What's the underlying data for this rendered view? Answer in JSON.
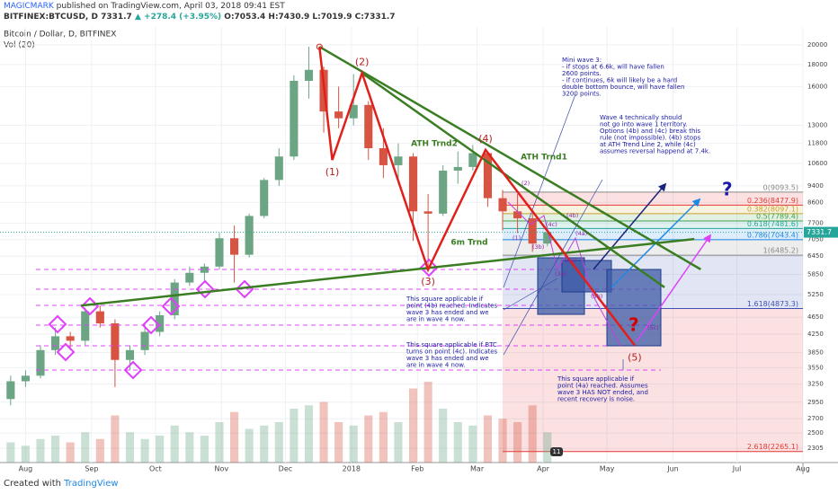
{
  "header": {
    "author": "MAGICMARK",
    "published": "published on TradingView.com, April 03, 2018 09:41 EST",
    "symbol": "BITFINEX:BTCUSD, D",
    "last": "7331.7",
    "change": "▲ +278.4 (+3.95%)",
    "ohlc": "O:7053.4 H:7430.9 L:7019.9 C:7331.7"
  },
  "footer": {
    "created": "Created with",
    "brand": "TradingView"
  },
  "chart_data": {
    "type": "candlestick",
    "title": "Bitcoin / Dollar, D, BITFINEX",
    "volume_label": "Vol (20)",
    "log_scale": true,
    "grid": true,
    "up_color": "#6ba583",
    "down_color": "#d75442",
    "x": [
      -7,
      0,
      7,
      14,
      21,
      28,
      35,
      42,
      49,
      56,
      63,
      70,
      77,
      84,
      91,
      98,
      105,
      112,
      119,
      126,
      133,
      140,
      147,
      154,
      161,
      168,
      175,
      182,
      189,
      196,
      203,
      210,
      217,
      224,
      231,
      238,
      245
    ],
    "open": [
      3000,
      3300,
      3400,
      3900,
      4200,
      4100,
      4800,
      4500,
      3700,
      3900,
      4300,
      4700,
      5600,
      5900,
      6100,
      7100,
      6500,
      8000,
      9700,
      11000,
      16500,
      17500,
      14000,
      13500,
      14500,
      11500,
      10500,
      11000,
      8200,
      8100,
      10200,
      10400,
      11200,
      8800,
      8200,
      7900,
      6900
    ],
    "high": [
      3400,
      3500,
      4000,
      4400,
      4300,
      4900,
      4950,
      4600,
      4000,
      4400,
      4800,
      5700,
      6100,
      6200,
      7300,
      7600,
      8100,
      9800,
      11500,
      17000,
      19800,
      17800,
      16000,
      17100,
      14800,
      12800,
      11800,
      11200,
      9000,
      10500,
      11300,
      11700,
      11300,
      9200,
      9000,
      8100,
      7430.9
    ],
    "low": [
      2900,
      3200,
      3350,
      3800,
      3900,
      4000,
      4400,
      3200,
      3500,
      3800,
      4200,
      4600,
      5500,
      5600,
      6000,
      5600,
      6400,
      7900,
      9400,
      10800,
      15000,
      12500,
      12800,
      13000,
      10800,
      9800,
      9600,
      7000,
      6000,
      8000,
      9500,
      10200,
      8400,
      7400,
      7300,
      6600,
      6800
    ],
    "close": [
      3300,
      3400,
      3900,
      4200,
      4100,
      4800,
      4500,
      3700,
      3900,
      4300,
      4700,
      5600,
      5900,
      6100,
      7100,
      6500,
      8000,
      9700,
      11000,
      16500,
      17500,
      14000,
      13500,
      14500,
      11500,
      10500,
      11000,
      8200,
      8100,
      10200,
      10400,
      11200,
      8800,
      8200,
      7900,
      6900,
      7331.7
    ],
    "volume": [
      30,
      25,
      35,
      40,
      30,
      45,
      35,
      70,
      45,
      35,
      40,
      55,
      45,
      40,
      60,
      75,
      50,
      55,
      60,
      80,
      85,
      90,
      60,
      55,
      70,
      75,
      60,
      110,
      120,
      80,
      60,
      55,
      70,
      65,
      60,
      85,
      45
    ],
    "last_price": {
      "value": 7331.7,
      "label": "7331.7"
    },
    "xlim": [
      -12,
      365
    ],
    "xticks": [
      {
        "value": 0,
        "label": "Aug"
      },
      {
        "value": 31,
        "label": "Sep"
      },
      {
        "value": 61,
        "label": "Oct"
      },
      {
        "value": 92,
        "label": "Nov"
      },
      {
        "value": 122,
        "label": "Dec"
      },
      {
        "value": 153,
        "label": "2018"
      },
      {
        "value": 184,
        "label": "Feb"
      },
      {
        "value": 212,
        "label": "Mar"
      },
      {
        "value": 243,
        "label": "Apr"
      },
      {
        "value": 273,
        "label": "May"
      },
      {
        "value": 304,
        "label": "Jun"
      },
      {
        "value": 334,
        "label": "Jul"
      },
      {
        "value": 365,
        "label": "Aug"
      }
    ],
    "ylim": [
      2135,
      22020
    ],
    "yticks": [
      20000,
      18000,
      16000,
      13000,
      11800,
      10600,
      9400,
      8600,
      7700,
      7050,
      6450,
      5850,
      5250,
      4650,
      4250,
      3850,
      3550,
      3250,
      2950,
      2700,
      2500,
      2305
    ],
    "fib_start": 224,
    "fib": [
      {
        "label": "0(9093.5)",
        "price": 9093.5,
        "color": "#888888"
      },
      {
        "label": "0.236(8477.9)",
        "price": 8477.9,
        "color": "#e53935"
      },
      {
        "label": "0.382(8097.1)",
        "price": 8097.1,
        "color": "#c9a227"
      },
      {
        "label": "0.5(7789.4)",
        "price": 7789.4,
        "color": "#43a047"
      },
      {
        "label": "0.618(7481.6)",
        "price": 7481.6,
        "color": "#26a69a"
      },
      {
        "label": "0.786(7043.4)",
        "price": 7043.4,
        "color": "#1e88e5"
      },
      {
        "label": "1(6485.2)",
        "price": 6485.2,
        "color": "#888888"
      },
      {
        "label": "1.618(4873.3)",
        "price": 4873.3,
        "color": "#3f51b5"
      },
      {
        "label": "2.618(2265.1)",
        "price": 2265.1,
        "color": "#e53935"
      }
    ],
    "waves": {
      "x": [
        138,
        144,
        158,
        189,
        216,
        286
      ],
      "y": [
        19800,
        10800,
        17200,
        6000,
        11400,
        4000
      ],
      "labels": [
        null,
        "(1)",
        "(2)",
        "(3)",
        "(4)",
        "(5)"
      ],
      "color": "#e0201b"
    },
    "trendlines": [
      {
        "name": "ATH Trnd1",
        "x": [
          138,
          317
        ],
        "y": [
          19800,
          6010
        ],
        "color": "#3a7d22"
      },
      {
        "name": "ATH Trnd2",
        "x": [
          158,
          300
        ],
        "y": [
          17200,
          5460
        ],
        "color": "#3a7d22"
      },
      {
        "name": "6m Trnd",
        "x": [
          26,
          314
        ],
        "y": [
          4950,
          7070
        ],
        "color": "#3a7d22"
      }
    ],
    "mini_labels": [
      "(2)",
      "(1)",
      "(3b)",
      "(4b)",
      "(4c)",
      "(4a)",
      "(3a)",
      "(5b)",
      "(5a)",
      "(5c)"
    ],
    "notes": [
      {
        "lines": [
          "Mini wave 3:",
          "- if stops at 6.6k, will have fallen",
          "2600 points.",
          "- if continues, 6k will likely be a hard",
          "double bottom bounce, will have fallen",
          "3200 points."
        ]
      },
      {
        "lines": [
          "Wave 4 technically should",
          "not go into wave 1 territory.",
          "Options (4b) and (4c) break this",
          "rule (not impossible). (4b) stops",
          "at ATH Trend Line 2, while (4c)",
          "assumes reversal happend at 7.4k."
        ]
      },
      {
        "lines": [
          "This square applicable if",
          "point (4b) reached. Indicates",
          "wave 3 has ended and we",
          "are in wave 4 now."
        ]
      },
      {
        "lines": [
          "This square applicable if BTC",
          "turns on point (4c). Indicates",
          "wave 3 has ended and we",
          "are in wave 4 now."
        ]
      },
      {
        "lines": [
          "This square applicable if",
          "point (4a) reached. Assumes",
          "wave 3 HAS NOT ended, and",
          "recent recovery is noise."
        ]
      }
    ],
    "question": "?",
    "badge": "11"
  }
}
